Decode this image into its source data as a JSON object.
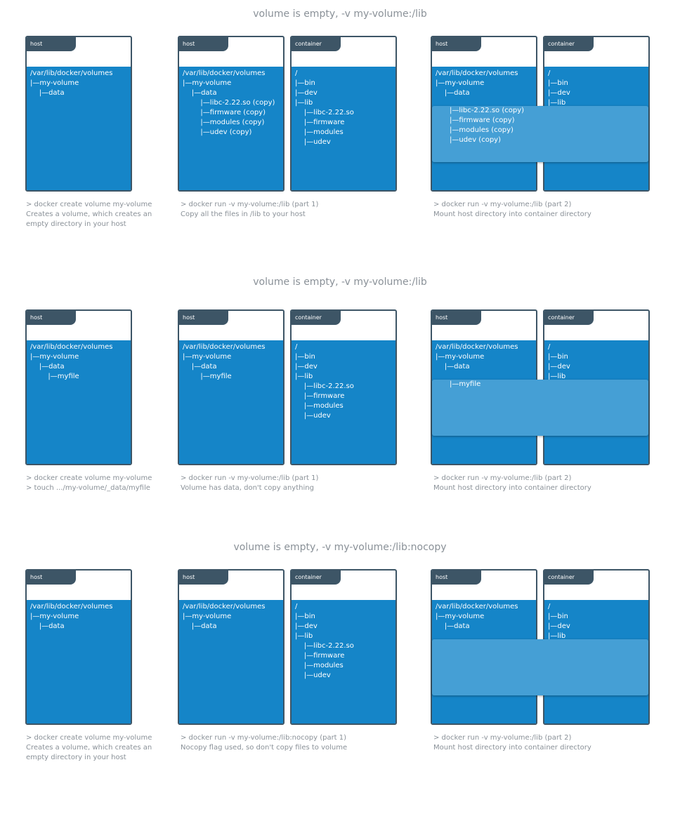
{
  "rows": [
    {
      "title": "volume is empty, -v my-volume:/lib",
      "step1": {
        "host_tab": "host",
        "host_tree": [
          "/var/lib/docker/volumes",
          "|—my-volume",
          "    |—data"
        ],
        "caption": [
          "> docker create volume my-volume",
          "Creates a volume, which creates an",
          "empty directory in your host"
        ]
      },
      "step2": {
        "host_tab": "host",
        "container_tab": "container",
        "host_tree": [
          "/var/lib/docker/volumes",
          "|—my-volume",
          "    |—data",
          "        |—libc-2.22.so (copy)",
          "        |—firmware (copy)",
          "        |—modules (copy)",
          "        |—udev (copy)"
        ],
        "container_tree": [
          "/",
          "|—bin",
          "|—dev",
          "|—lib",
          "    |—libc-2.22.so",
          "    |—firmware",
          "    |—modules",
          "    |—udev"
        ],
        "caption": [
          "> docker run -v my-volume:/lib (part 1)",
          "Copy all the files in /lib to your host"
        ]
      },
      "step3": {
        "host_tab": "host",
        "container_tab": "container",
        "host_tree": [
          "/var/lib/docker/volumes",
          "|—my-volume",
          "    |—data"
        ],
        "container_tree": [
          "/",
          "|—bin",
          "|—dev",
          "|—lib"
        ],
        "overlay_tree": [
          "|—libc-2.22.so (copy)",
          "|—firmware (copy)",
          "|—modules (copy)",
          "|—udev (copy)"
        ],
        "caption": [
          "> docker run -v my-volume:/lib (part 2)",
          "Mount host directory into container directory"
        ]
      }
    },
    {
      "title": "volume is empty, -v my-volume:/lib",
      "step1": {
        "host_tab": "host",
        "host_tree": [
          "/var/lib/docker/volumes",
          "|—my-volume",
          "    |—data",
          "        |—myfile"
        ],
        "caption": [
          "> docker create volume my-volume",
          "> touch .../my-volume/_data/myfile"
        ]
      },
      "step2": {
        "host_tab": "host",
        "container_tab": "container",
        "host_tree": [
          "/var/lib/docker/volumes",
          "|—my-volume",
          "    |—data",
          "        |—myfile"
        ],
        "container_tree": [
          "/",
          "|—bin",
          "|—dev",
          "|—lib",
          "    |—libc-2.22.so",
          "    |—firmware",
          "    |—modules",
          "    |—udev"
        ],
        "caption": [
          "> docker run -v my-volume:/lib (part 1)",
          "Volume has data, don't copy anything"
        ]
      },
      "step3": {
        "host_tab": "host",
        "container_tab": "container",
        "host_tree": [
          "/var/lib/docker/volumes",
          "|—my-volume",
          "    |—data"
        ],
        "container_tree": [
          "/",
          "|—bin",
          "|—dev",
          "|—lib"
        ],
        "overlay_tree": [
          "|—myfile"
        ],
        "caption": [
          "> docker run -v my-volume:/lib (part 2)",
          "Mount host directory into container directory"
        ]
      }
    },
    {
      "title": "volume is empty, -v my-volume:/lib:nocopy",
      "step1": {
        "host_tab": "host",
        "host_tree": [
          "/var/lib/docker/volumes",
          "|—my-volume",
          "    |—data"
        ],
        "caption": [
          "> docker create volume my-volume",
          "Creates a volume, which creates an",
          "empty directory in your host"
        ]
      },
      "step2": {
        "host_tab": "host",
        "container_tab": "container",
        "host_tree": [
          "/var/lib/docker/volumes",
          "|—my-volume",
          "    |—data"
        ],
        "container_tree": [
          "/",
          "|—bin",
          "|—dev",
          "|—lib",
          "    |—libc-2.22.so",
          "    |—firmware",
          "    |—modules",
          "    |—udev"
        ],
        "caption": [
          "> docker run -v my-volume:/lib:nocopy (part 1)",
          "Nocopy flag used, so don't copy files to volume"
        ]
      },
      "step3": {
        "host_tab": "host",
        "container_tab": "container",
        "host_tree": [
          "/var/lib/docker/volumes",
          "|—my-volume",
          "    |—data"
        ],
        "container_tree": [
          "/",
          "|—bin",
          "|—dev",
          "|—lib"
        ],
        "overlay_tree": [],
        "caption": [
          "> docker run -v my-volume:/lib (part 2)",
          "Mount host directory into container directory"
        ]
      }
    }
  ]
}
